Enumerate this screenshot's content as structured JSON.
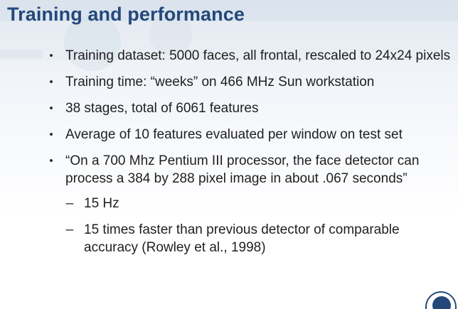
{
  "slide": {
    "title": "Training and performance",
    "bullets": [
      {
        "marker": "•",
        "text": "Training dataset: 5000 faces, all frontal, rescaled to 24x24 pixels"
      },
      {
        "marker": "•",
        "text": "Training time: “weeks” on 466 MHz Sun workstation"
      },
      {
        "marker": "•",
        "text": "38 stages, total of 6061 features"
      },
      {
        "marker": "•",
        "text": "Average of 10 features evaluated per window on test set"
      },
      {
        "marker": "•",
        "text": "“On a 700 Mhz Pentium III processor, the face detector can process a 384 by 288 pixel image in about .067 seconds”",
        "subbullets": [
          {
            "marker": "–",
            "text": "15 Hz"
          },
          {
            "marker": "–",
            "text": "15 times faster than previous detector of comparable accuracy (Rowley et al., 1998)"
          }
        ]
      }
    ]
  },
  "colors": {
    "title": "#24487a",
    "text": "#1f1f1f",
    "logo": "#24487a"
  },
  "icons": {
    "corner_logo": "university-seal-icon"
  }
}
